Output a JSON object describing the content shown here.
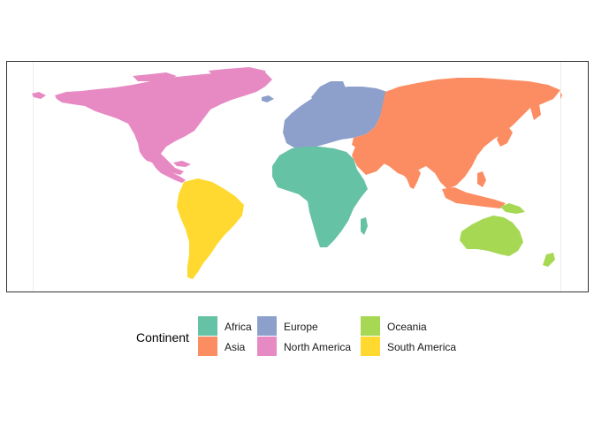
{
  "legend": {
    "title": "Continent",
    "items": [
      {
        "key": "africa",
        "label": "Africa",
        "color": "#66C2A5"
      },
      {
        "key": "asia",
        "label": "Asia",
        "color": "#FC8D62"
      },
      {
        "key": "europe",
        "label": "Europe",
        "color": "#8DA0CB"
      },
      {
        "key": "north-america",
        "label": "North America",
        "color": "#E78AC3"
      },
      {
        "key": "oceania",
        "label": "Oceania",
        "color": "#A6D854"
      },
      {
        "key": "south-america",
        "label": "South America",
        "color": "#FFD92F"
      }
    ]
  },
  "map": {
    "projection": "equirectangular world map",
    "panel_border": true,
    "gridlines": "light meridian lines at map edges"
  }
}
